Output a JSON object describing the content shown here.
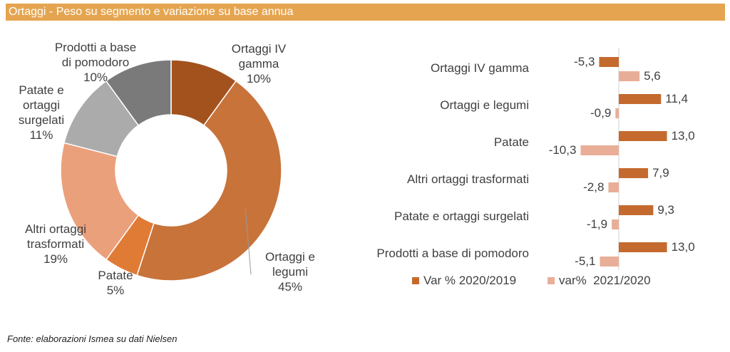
{
  "header": {
    "title": "Ortaggi - Peso su segmento e variazione su base annua"
  },
  "footer": {
    "source": "Fonte: elaborazioni Ismea su dati Nielsen"
  },
  "colors": {
    "header_bg": "#E5A550",
    "bar_2020": "#C46A2E",
    "bar_2021": "#E9AE98",
    "slice_ortaggi_iv": "#A3521E",
    "slice_ortaggi_legumi": "#C8733A",
    "slice_patate": "#E07B36",
    "slice_altri": "#EBA07C",
    "slice_surgelati": "#ABABAB",
    "slice_pomodoro": "#7A7A7A"
  },
  "chart_data": [
    {
      "type": "pie",
      "variant": "donut",
      "categories": [
        "Ortaggi IV gamma",
        "Ortaggi e legumi",
        "Patate",
        "Altri ortaggi trasformati",
        "Patate e ortaggi surgelati",
        "Prodotti a base di pomodoro"
      ],
      "values": [
        10,
        45,
        5,
        19,
        11,
        10
      ],
      "labels": [
        [
          "Ortaggi IV",
          "gamma",
          "10%"
        ],
        [
          "Ortaggi e",
          "legumi",
          "45%"
        ],
        [
          "Patate",
          "5%"
        ],
        [
          "Altri ortaggi",
          "trasformati",
          "19%"
        ],
        [
          "Patate e",
          "ortaggi",
          "surgelati",
          "11%"
        ],
        [
          "Prodotti a base",
          "di pomodoro",
          "10%"
        ]
      ]
    },
    {
      "type": "bar",
      "orientation": "horizontal",
      "categories": [
        "Ortaggi IV gamma",
        "Ortaggi e legumi",
        "Patate",
        "Altri ortaggi trasformati",
        "Patate e ortaggi surgelati",
        "Prodotti a base di pomodoro"
      ],
      "series": [
        {
          "name": "Var % 2020/2019",
          "values": [
            -5.3,
            11.4,
            13.0,
            7.9,
            9.3,
            13.0
          ],
          "labels": [
            "-5,3",
            "11,4",
            "13,0",
            "7,9",
            "9,3",
            "13,0"
          ]
        },
        {
          "name": "var%  2021/2020",
          "values": [
            5.6,
            -0.9,
            -10.3,
            -2.8,
            -1.9,
            -5.1
          ],
          "labels": [
            "5,6",
            "-0,9",
            "-10,3",
            "-2,8",
            "-1,9",
            "-5,1"
          ]
        }
      ],
      "legend": "bottom"
    }
  ]
}
